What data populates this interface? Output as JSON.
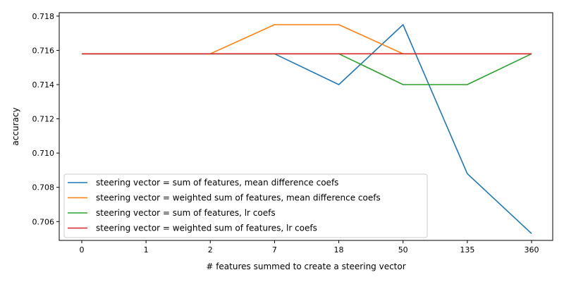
{
  "chart_data": {
    "type": "line",
    "categories": [
      "0",
      "1",
      "2",
      "7",
      "18",
      "50",
      "135",
      "360"
    ],
    "xlabel": "# features summed to create a steering vector",
    "ylabel": "accuracy",
    "ylim": [
      0.7049,
      0.7182
    ],
    "yticks": [
      "0.706",
      "0.708",
      "0.710",
      "0.712",
      "0.714",
      "0.716",
      "0.718"
    ],
    "grid": false,
    "legend_position": "lower-left",
    "series": [
      {
        "name": "steering vector = sum of features, mean difference coefs",
        "color": "#1f77b4",
        "values": [
          0.7158,
          0.7158,
          0.7158,
          0.7158,
          0.714,
          0.7175,
          0.7088,
          0.7053
        ]
      },
      {
        "name": "steering vector = weighted sum of features, mean difference coefs",
        "color": "#ff7f0e",
        "values": [
          0.7158,
          0.7158,
          0.7158,
          0.7175,
          0.7175,
          0.7158,
          0.7158,
          0.7158
        ]
      },
      {
        "name": "steering vector = sum of features, lr coefs",
        "color": "#2ca02c",
        "values": [
          0.7158,
          0.7158,
          0.7158,
          0.7158,
          0.7158,
          0.714,
          0.714,
          0.7158
        ]
      },
      {
        "name": "steering vector = weighted sum of features, lr coefs",
        "color": "#d62728",
        "values": [
          0.7158,
          0.7158,
          0.7158,
          0.7158,
          0.7158,
          0.7158,
          0.7158,
          0.7158
        ]
      }
    ]
  }
}
